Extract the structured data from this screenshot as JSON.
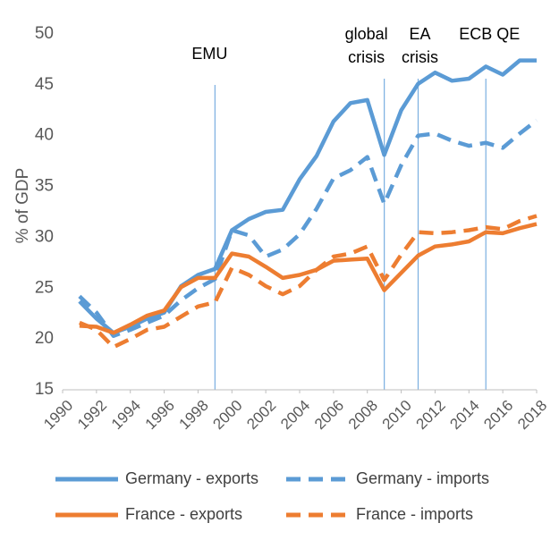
{
  "chart_data": {
    "type": "line",
    "title": "",
    "xlabel": "",
    "ylabel": "% of GDP",
    "xlim": [
      1990,
      2018
    ],
    "ylim": [
      15,
      50
    ],
    "yticks": [
      15,
      20,
      25,
      30,
      35,
      40,
      45,
      50
    ],
    "xticks": [
      1990,
      1992,
      1994,
      1996,
      1998,
      2000,
      2002,
      2004,
      2006,
      2008,
      2010,
      2012,
      2014,
      2016,
      2018
    ],
    "grid": false,
    "legend_position": "bottom",
    "x": [
      1991,
      1992,
      1993,
      1994,
      1995,
      1996,
      1997,
      1998,
      1999,
      2000,
      2001,
      2002,
      2003,
      2004,
      2005,
      2006,
      2007,
      2008,
      2009,
      2010,
      2011,
      2012,
      2013,
      2014,
      2015,
      2016,
      2017,
      2018
    ],
    "series": [
      {
        "name": "Germany - exports",
        "color": "#5B9BD5",
        "dash": "solid",
        "values": [
          23.7,
          22.0,
          20.6,
          21.2,
          22.0,
          22.6,
          25.2,
          26.3,
          26.9,
          30.7,
          31.8,
          32.5,
          32.7,
          35.7,
          38.0,
          41.4,
          43.2,
          43.5,
          38.1,
          42.5,
          45.1,
          46.2,
          45.4,
          45.6,
          46.8,
          46.0,
          47.4,
          47.4
        ]
      },
      {
        "name": "Germany - imports",
        "color": "#5B9BD5",
        "dash": "dashed",
        "values": [
          24.2,
          22.6,
          20.3,
          20.9,
          21.6,
          22.3,
          23.8,
          25.0,
          25.9,
          30.7,
          30.2,
          28.1,
          28.8,
          30.3,
          32.8,
          35.8,
          36.6,
          37.9,
          33.3,
          37.1,
          40.0,
          40.2,
          39.5,
          39.0,
          39.3,
          38.8,
          40.2,
          41.5
        ]
      },
      {
        "name": "France - exports",
        "color": "#ED7D31",
        "dash": "solid",
        "values": [
          21.3,
          21.2,
          20.6,
          21.4,
          22.3,
          22.8,
          25.1,
          26.0,
          26.0,
          28.4,
          28.1,
          27.1,
          26.0,
          26.3,
          26.8,
          27.7,
          27.8,
          27.9,
          24.8,
          26.5,
          28.2,
          29.1,
          29.3,
          29.6,
          30.5,
          30.4,
          30.9,
          31.3
        ]
      },
      {
        "name": "France - imports",
        "color": "#ED7D31",
        "dash": "dashed",
        "values": [
          21.6,
          20.9,
          19.2,
          20.0,
          20.9,
          21.2,
          22.2,
          23.2,
          23.6,
          27.0,
          26.3,
          25.2,
          24.4,
          25.2,
          26.8,
          28.1,
          28.4,
          29.1,
          25.8,
          28.3,
          30.5,
          30.4,
          30.5,
          30.7,
          31.0,
          30.8,
          31.6,
          32.1
        ]
      }
    ],
    "annotations": [
      {
        "label": "EMU",
        "x": 1999
      },
      {
        "label_lines": [
          "global",
          "crisis"
        ],
        "x": 2009
      },
      {
        "label_lines": [
          "EA",
          "crisis"
        ],
        "x": 2011
      },
      {
        "label": "ECB QE",
        "x": 2015
      }
    ]
  }
}
